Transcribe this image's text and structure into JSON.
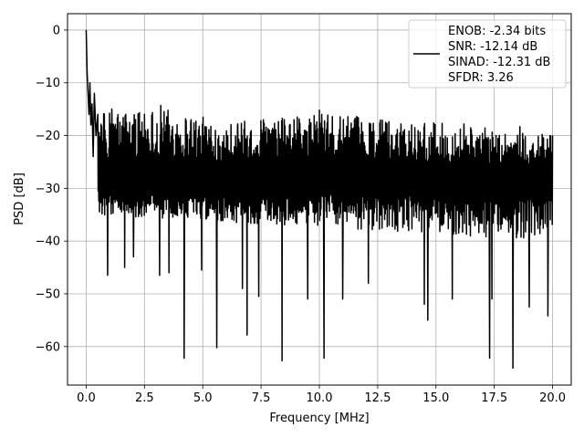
{
  "chart_data": {
    "type": "line",
    "xlabel": "Frequency [MHz]",
    "ylabel": "PSD [dB]",
    "xlim": [
      -0.8,
      20.8
    ],
    "ylim": [
      -67.3,
      3.1
    ],
    "x_ticks": [
      0.0,
      2.5,
      5.0,
      7.5,
      10.0,
      12.5,
      15.0,
      17.5,
      20.0
    ],
    "x_tick_labels": [
      "0.0",
      "2.5",
      "5.0",
      "7.5",
      "10.0",
      "12.5",
      "15.0",
      "17.5",
      "20.0"
    ],
    "y_ticks": [
      0,
      -10,
      -20,
      -30,
      -40,
      -50,
      -60
    ],
    "y_tick_labels": [
      "0",
      "−10",
      "−20",
      "−30",
      "−40",
      "−50",
      "−60"
    ],
    "grid": true,
    "legend_position": "top-right",
    "legend_lines": [
      "ENOB: -2.34 bits",
      "SNR: -12.14 dB",
      "SINAD: -12.31 dB",
      "SFDR: 3.26"
    ],
    "series_color": "#000000",
    "grid_color": "#b0b0b0",
    "series": [
      {
        "x_start": 0.0,
        "x_end": 20.0,
        "points_count": 1400,
        "start_peak": [
          [
            0.0,
            0.0
          ],
          [
            0.04,
            -8.0
          ],
          [
            0.08,
            -12.0
          ],
          [
            0.12,
            -16.0
          ],
          [
            0.16,
            -10.0
          ],
          [
            0.2,
            -18.0
          ],
          [
            0.25,
            -14.0
          ],
          [
            0.3,
            -24.0
          ],
          [
            0.35,
            -12.0
          ],
          [
            0.42,
            -20.0
          ],
          [
            0.5,
            -16.0
          ]
        ],
        "envelope_max": [
          [
            0.5,
            -15.5
          ],
          [
            3.2,
            -14.5
          ],
          [
            6.0,
            -17.5
          ],
          [
            10.0,
            -16.0
          ],
          [
            15.0,
            -17.5
          ],
          [
            20.0,
            -20.0
          ]
        ],
        "envelope_min": [
          [
            0.5,
            -35.0
          ],
          [
            20.0,
            -40.0
          ]
        ],
        "noise_floor_center": -29,
        "deep_nulls": [
          [
            0.92,
            -46.5
          ],
          [
            1.65,
            -45.0
          ],
          [
            2.03,
            -43.0
          ],
          [
            3.15,
            -46.5
          ],
          [
            3.55,
            -46.0
          ],
          [
            4.2,
            -62.2
          ],
          [
            4.95,
            -45.5
          ],
          [
            5.6,
            -60.2
          ],
          [
            6.7,
            -49.0
          ],
          [
            6.9,
            -57.8
          ],
          [
            7.4,
            -50.5
          ],
          [
            8.4,
            -62.7
          ],
          [
            9.5,
            -51.0
          ],
          [
            10.2,
            -62.2
          ],
          [
            11.0,
            -51.0
          ],
          [
            12.1,
            -48.0
          ],
          [
            14.5,
            -52.0
          ],
          [
            14.65,
            -55.0
          ],
          [
            15.7,
            -51.0
          ],
          [
            17.3,
            -62.2
          ],
          [
            17.4,
            -51.0
          ],
          [
            18.3,
            -64.1
          ],
          [
            19.0,
            -52.5
          ],
          [
            19.8,
            -54.2
          ]
        ],
        "tall_spikes": [
          [
            1.1,
            -15.0
          ],
          [
            2.25,
            -16.5
          ],
          [
            2.5,
            -16.0
          ],
          [
            3.2,
            -14.3
          ],
          [
            4.5,
            -17.0
          ],
          [
            6.5,
            -17.8
          ],
          [
            7.6,
            -17.0
          ],
          [
            9.05,
            -16.5
          ],
          [
            10.0,
            -15.2
          ],
          [
            10.1,
            -16.0
          ],
          [
            11.6,
            -16.4
          ],
          [
            13.5,
            -17.8
          ],
          [
            16.2,
            -17.8
          ],
          [
            18.6,
            -18.3
          ],
          [
            20.0,
            -20.0
          ]
        ]
      }
    ]
  }
}
